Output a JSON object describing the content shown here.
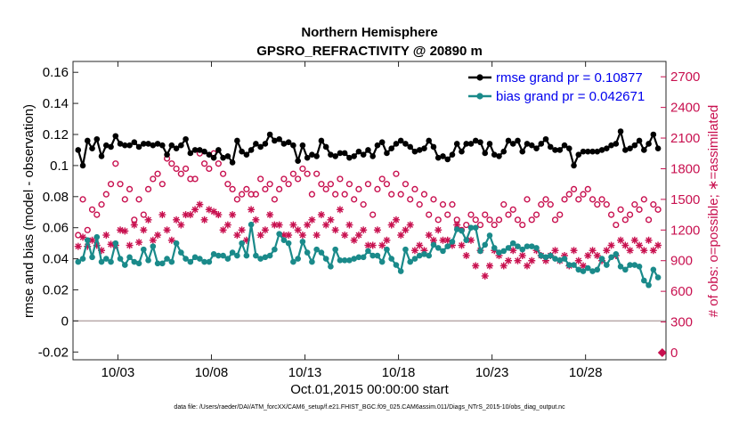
{
  "chart_data": {
    "type": "line",
    "title": "Northern Hemisphere",
    "subtitle": "GPSRO_REFRACTIVITY @ 20890 m",
    "xlabel": "Oct.01,2015 00:00:00 start",
    "ylabel": "rmse and bias (model - observation)",
    "y2label": "# of obs: o=possible; ∗=assimilated",
    "footnote": "data file: /Users/raeder/DAI/ATM_forcXX/CAM6_setup/f.e21.FHIST_BGC.f09_025.CAM6assim.011/Diags_NTrS_2015-10/obs_diag_output.nc",
    "x_range": [
      0.6,
      32.3
    ],
    "ylim": [
      -0.025,
      0.167
    ],
    "y2lim": [
      -70,
      2850
    ],
    "x_ticks": [
      {
        "value": 3,
        "label": "10/03"
      },
      {
        "value": 8,
        "label": "10/08"
      },
      {
        "value": 13,
        "label": "10/13"
      },
      {
        "value": 18,
        "label": "10/18"
      },
      {
        "value": 23,
        "label": "10/23"
      },
      {
        "value": 28,
        "label": "10/28"
      }
    ],
    "y_ticks": [
      {
        "value": -0.02,
        "label": "-0.02"
      },
      {
        "value": 0,
        "label": "0"
      },
      {
        "value": 0.02,
        "label": "0.02"
      },
      {
        "value": 0.04,
        "label": "0.04"
      },
      {
        "value": 0.06,
        "label": "0.06"
      },
      {
        "value": 0.08,
        "label": "0.08"
      },
      {
        "value": 0.1,
        "label": "0.1"
      },
      {
        "value": 0.12,
        "label": "0.12"
      },
      {
        "value": 0.14,
        "label": "0.14"
      },
      {
        "value": 0.16,
        "label": "0.16"
      }
    ],
    "y2_ticks": [
      {
        "value": 0,
        "label": "0"
      },
      {
        "value": 300,
        "label": "300"
      },
      {
        "value": 600,
        "label": "600"
      },
      {
        "value": 900,
        "label": "900"
      },
      {
        "value": 1200,
        "label": "1200"
      },
      {
        "value": 1500,
        "label": "1500"
      },
      {
        "value": 1800,
        "label": "1800"
      },
      {
        "value": 2100,
        "label": "2100"
      },
      {
        "value": 2400,
        "label": "2400"
      },
      {
        "value": 2700,
        "label": "2700"
      }
    ],
    "legend_position": "top-right",
    "x": [
      0.875,
      1.125,
      1.375,
      1.625,
      1.875,
      2.125,
      2.375,
      2.625,
      2.875,
      3.125,
      3.375,
      3.625,
      3.875,
      4.125,
      4.375,
      4.625,
      4.875,
      5.125,
      5.375,
      5.625,
      5.875,
      6.125,
      6.375,
      6.625,
      6.875,
      7.125,
      7.375,
      7.625,
      7.875,
      8.125,
      8.375,
      8.625,
      8.875,
      9.125,
      9.375,
      9.625,
      9.875,
      10.125,
      10.375,
      10.625,
      10.875,
      11.125,
      11.375,
      11.625,
      11.875,
      12.125,
      12.375,
      12.625,
      12.875,
      13.125,
      13.375,
      13.625,
      13.875,
      14.125,
      14.375,
      14.625,
      14.875,
      15.125,
      15.375,
      15.625,
      15.875,
      16.125,
      16.375,
      16.625,
      16.875,
      17.125,
      17.375,
      17.625,
      17.875,
      18.125,
      18.375,
      18.625,
      18.875,
      19.125,
      19.375,
      19.625,
      19.875,
      20.125,
      20.375,
      20.625,
      20.875,
      21.125,
      21.375,
      21.625,
      21.875,
      22.125,
      22.375,
      22.625,
      22.875,
      23.125,
      23.375,
      23.625,
      23.875,
      24.125,
      24.375,
      24.625,
      24.875,
      25.125,
      25.375,
      25.625,
      25.875,
      26.125,
      26.375,
      26.625,
      26.875,
      27.125,
      27.375,
      27.625,
      27.875,
      28.125,
      28.375,
      28.625,
      28.875,
      29.125,
      29.375,
      29.625,
      29.875,
      30.125,
      30.375,
      30.625,
      30.875,
      31.125,
      31.375,
      31.625,
      31.875
    ],
    "series": [
      {
        "name": "rmse grand pr = 0.10877",
        "color": "#000000",
        "marker": "dot",
        "axis": "left",
        "values": [
          0.11,
          0.1,
          0.116,
          0.111,
          0.117,
          0.106,
          0.113,
          0.112,
          0.119,
          0.114,
          0.113,
          0.113,
          0.115,
          0.112,
          0.114,
          0.114,
          0.113,
          0.114,
          0.113,
          0.107,
          0.113,
          0.111,
          0.113,
          0.117,
          0.108,
          0.11,
          0.11,
          0.109,
          0.107,
          0.105,
          0.11,
          0.105,
          0.106,
          0.102,
          0.116,
          0.109,
          0.107,
          0.11,
          0.114,
          0.112,
          0.114,
          0.12,
          0.116,
          0.117,
          0.114,
          0.115,
          0.113,
          0.103,
          0.113,
          0.105,
          0.107,
          0.106,
          0.116,
          0.112,
          0.107,
          0.106,
          0.108,
          0.108,
          0.105,
          0.106,
          0.109,
          0.107,
          0.11,
          0.106,
          0.113,
          0.115,
          0.108,
          0.111,
          0.114,
          0.116,
          0.114,
          0.112,
          0.109,
          0.11,
          0.111,
          0.116,
          0.112,
          0.105,
          0.106,
          0.104,
          0.107,
          0.114,
          0.109,
          0.114,
          0.114,
          0.116,
          0.115,
          0.108,
          0.114,
          0.107,
          0.106,
          0.109,
          0.116,
          0.114,
          0.116,
          0.109,
          0.114,
          0.113,
          0.111,
          0.114,
          0.117,
          0.112,
          0.11,
          0.11,
          0.113,
          0.111,
          0.1,
          0.107,
          0.109,
          0.109,
          0.109,
          0.109,
          0.11,
          0.111,
          0.113,
          0.114,
          0.122,
          0.11,
          0.111,
          0.113,
          0.116,
          0.11,
          0.114,
          0.12,
          0.111
        ]
      },
      {
        "name": "bias grand pr = 0.042671",
        "color": "#1a8a8a",
        "marker": "dot",
        "axis": "left",
        "values": [
          0.038,
          0.04,
          0.052,
          0.041,
          0.054,
          0.038,
          0.04,
          0.038,
          0.05,
          0.04,
          0.036,
          0.041,
          0.038,
          0.037,
          0.046,
          0.039,
          0.048,
          0.037,
          0.037,
          0.04,
          0.038,
          0.05,
          0.044,
          0.04,
          0.038,
          0.041,
          0.04,
          0.038,
          0.038,
          0.043,
          0.042,
          0.042,
          0.04,
          0.044,
          0.042,
          0.05,
          0.042,
          0.062,
          0.042,
          0.04,
          0.041,
          0.042,
          0.046,
          0.056,
          0.052,
          0.05,
          0.038,
          0.04,
          0.051,
          0.044,
          0.038,
          0.046,
          0.044,
          0.04,
          0.035,
          0.046,
          0.039,
          0.039,
          0.039,
          0.04,
          0.041,
          0.041,
          0.045,
          0.042,
          0.042,
          0.038,
          0.046,
          0.04,
          0.036,
          0.032,
          0.046,
          0.038,
          0.04,
          0.042,
          0.043,
          0.042,
          0.049,
          0.047,
          0.045,
          0.048,
          0.051,
          0.059,
          0.058,
          0.052,
          0.06,
          0.06,
          0.045,
          0.049,
          0.055,
          0.047,
          0.044,
          0.045,
          0.047,
          0.05,
          0.048,
          0.046,
          0.048,
          0.048,
          0.047,
          0.042,
          0.041,
          0.042,
          0.04,
          0.039,
          0.04,
          0.036,
          0.036,
          0.033,
          0.032,
          0.034,
          0.032,
          0.033,
          0.04,
          0.036,
          0.041,
          0.043,
          0.035,
          0.033,
          0.036,
          0.036,
          0.035,
          0.026,
          0.023,
          0.033,
          0.028
        ]
      },
      {
        "name": "possible",
        "color": "#c8104f",
        "marker": "circle",
        "axis": "right",
        "values": [
          1150,
          1500,
          1200,
          1400,
          1350,
          1450,
          1550,
          1650,
          1850,
          1650,
          1500,
          1600,
          1300,
          1500,
          1350,
          1600,
          1700,
          1750,
          1650,
          1900,
          1850,
          1800,
          1750,
          1800,
          1700,
          1700,
          1950,
          1850,
          1800,
          1950,
          1850,
          1750,
          1650,
          1600,
          1500,
          1550,
          1600,
          1550,
          1550,
          1700,
          1600,
          1650,
          1500,
          1600,
          1700,
          1650,
          1750,
          1700,
          1800,
          1750,
          1550,
          1750,
          1650,
          1600,
          1650,
          1550,
          1700,
          1550,
          1650,
          1500,
          1600,
          1450,
          1650,
          1350,
          1600,
          1700,
          1650,
          1550,
          1750,
          1550,
          1650,
          1500,
          1600,
          1450,
          1550,
          1350,
          1500,
          1300,
          1450,
          1350,
          1450,
          1300,
          1200,
          1250,
          1350,
          1300,
          1250,
          1350,
          1300,
          1250,
          1300,
          1450,
          1350,
          1400,
          1300,
          1250,
          1500,
          1300,
          1350,
          1450,
          1500,
          1450,
          1300,
          1350,
          1500,
          1550,
          1600,
          1500,
          1550,
          1600,
          1500,
          1450,
          1500,
          1450,
          1350,
          1250,
          1400,
          1300,
          1350,
          1450,
          1400,
          1500,
          1300,
          1450,
          1400
        ]
      },
      {
        "name": "assimilated",
        "color": "#c8104f",
        "marker": "star",
        "axis": "right",
        "values": [
          1040,
          1130,
          1040,
          1100,
          1050,
          1000,
          1150,
          1060,
          1050,
          1200,
          1190,
          1050,
          1250,
          1080,
          1200,
          1300,
          1100,
          1150,
          1350,
          1200,
          1100,
          1300,
          1250,
          1350,
          1350,
          1400,
          1450,
          1300,
          1400,
          1380,
          1350,
          1200,
          1250,
          1350,
          1150,
          1200,
          1100,
          1400,
          1300,
          1150,
          1200,
          1350,
          1250,
          1250,
          1150,
          1150,
          1250,
          1200,
          1150,
          1250,
          1300,
          1150,
          1350,
          1250,
          1300,
          1200,
          1400,
          1150,
          1250,
          1100,
          1150,
          1200,
          1050,
          1050,
          1200,
          1050,
          1100,
          1250,
          1300,
          1150,
          1200,
          1250,
          1000,
          1050,
          1000,
          1150,
          1100,
          1200,
          1100,
          1100,
          1050,
          1250,
          1050,
          950,
          1100,
          850,
          1000,
          750,
          850,
          1000,
          950,
          850,
          900,
          1000,
          900,
          950,
          850,
          900,
          1000,
          950,
          900,
          950,
          1000,
          900,
          950,
          850,
          1000,
          900,
          850,
          950,
          1000,
          950,
          900,
          1000,
          1050,
          950,
          1100,
          1050,
          1000,
          1100,
          1050,
          1000,
          1100,
          1000,
          1050
        ]
      }
    ],
    "zero_line_color": "#b8a8a8",
    "isolated_points": [
      {
        "x": 32.1,
        "y2": 0,
        "marker": "diamond",
        "color": "#c8104f"
      }
    ]
  }
}
